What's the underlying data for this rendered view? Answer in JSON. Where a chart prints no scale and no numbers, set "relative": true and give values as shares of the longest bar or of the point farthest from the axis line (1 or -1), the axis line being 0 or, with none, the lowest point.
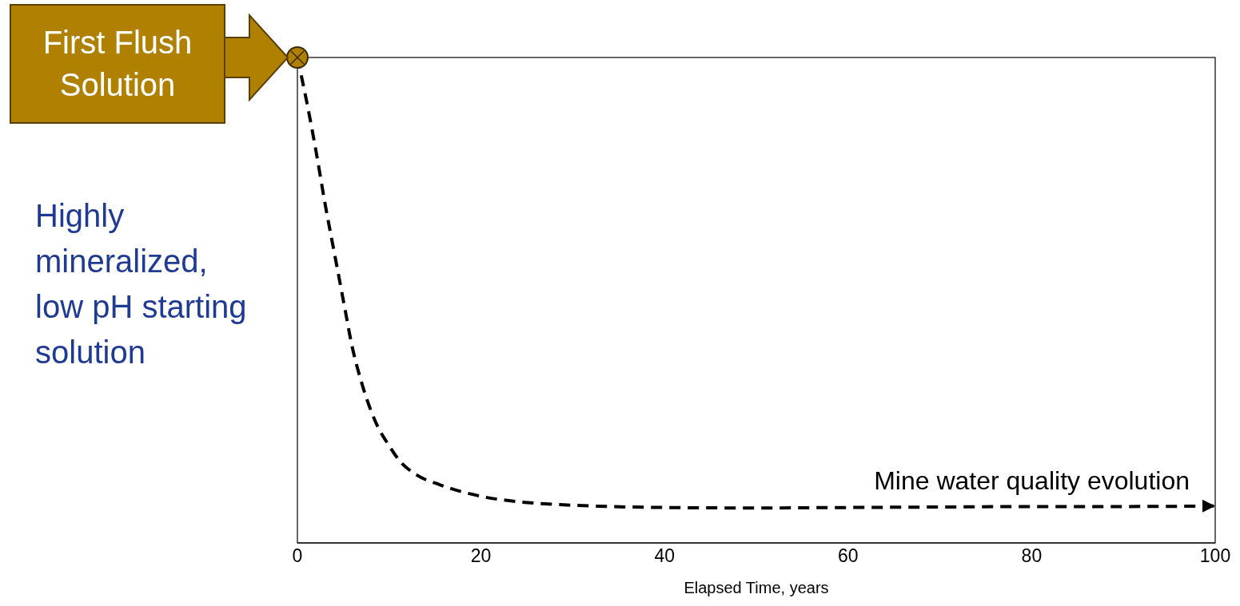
{
  "chart_data": {
    "type": "line",
    "relative": true,
    "xlabel": "Elapsed Time, years",
    "xlim": [
      0,
      100
    ],
    "xticks": [
      0,
      20,
      40,
      60,
      80,
      100
    ],
    "tick_labels": "x",
    "line_style": "dashed",
    "marker": "none",
    "series": [
      {
        "color": "#000000",
        "x": [
          0,
          1,
          2,
          3,
          4.2,
          5.2,
          5.9,
          7,
          8.5,
          10,
          11.1,
          13,
          15.5,
          18,
          20,
          24,
          28.6,
          34,
          40,
          50,
          60,
          70,
          80,
          90,
          100
        ],
        "values": [
          1,
          0.91,
          0.81,
          0.7,
          0.58,
          0.48,
          0.41,
          0.33,
          0.25,
          0.2,
          0.17,
          0.14,
          0.12,
          0.105,
          0.096,
          0.085,
          0.079,
          0.075,
          0.073,
          0.072,
          0.073,
          0.074,
          0.075,
          0.075,
          0.076
        ]
      },
      {
        "type": "scatter",
        "color": "#b08000",
        "marker": "circle",
        "x": [
          0
        ],
        "values": [
          1
        ]
      }
    ],
    "annotations": [
      "First Flush Solution",
      "Highly mineralized, low pH starting solution",
      {
        "text": "Mine water quality evolution",
        "x": 100,
        "y": 0.076
      }
    ]
  }
}
